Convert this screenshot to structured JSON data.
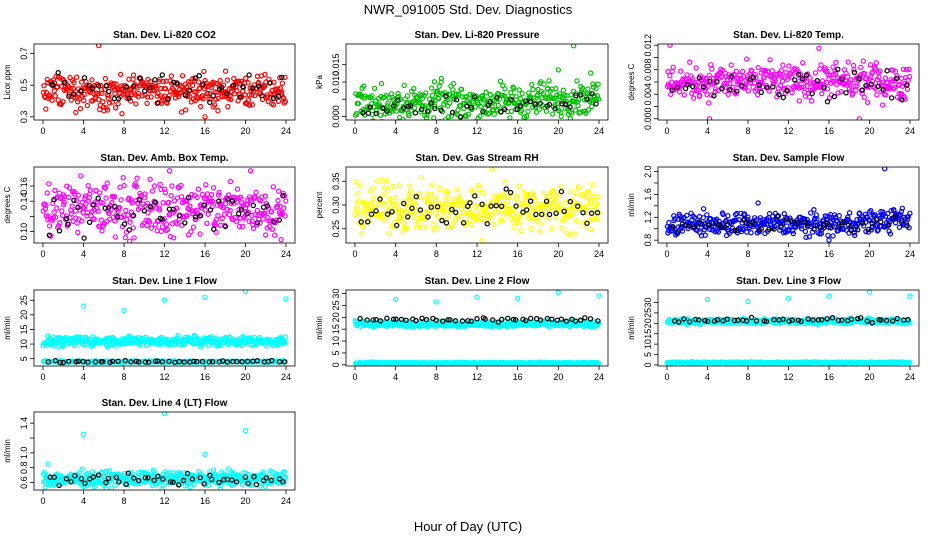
{
  "figure": {
    "title": "NWR_091005  Std. Dev. Diagnostics",
    "xlabel": "Hour of Day (UTC)"
  },
  "chart_data": [
    {
      "type": "scatter",
      "title": "Stan. Dev. Li-820 CO2",
      "ylabel": "Licor ppm",
      "xlim": [
        0,
        24
      ],
      "ylim": [
        0.28,
        0.76
      ],
      "x_ticks": [
        0,
        4,
        8,
        12,
        16,
        20,
        24
      ],
      "y_ticks": [
        0.3,
        0.5,
        0.7
      ],
      "series": [
        {
          "color": "#ff0000",
          "n": 380,
          "x_range": [
            0,
            24
          ],
          "mean": 0.46,
          "spread": 0.05,
          "extra": [
            [
              5.5,
              0.75
            ],
            [
              16,
              0.3
            ],
            [
              7.8,
              0.32
            ]
          ]
        },
        {
          "color": "#000000",
          "n": 48,
          "x_range": [
            0.5,
            24
          ],
          "mean": 0.48,
          "spread": 0.045,
          "extra": []
        }
      ]
    },
    {
      "type": "scatter",
      "title": "Stan. Dev. Li-820 Pressure",
      "ylabel": "kPa",
      "xlim": [
        0,
        24
      ],
      "ylim": [
        -0.001,
        0.021
      ],
      "x_ticks": [
        0,
        4,
        8,
        12,
        16,
        20,
        24
      ],
      "y_ticks": [
        0.0,
        0.005,
        0.01,
        0.015
      ],
      "y_tick_labels": [
        "0.000",
        "",
        "0.010",
        "0.015"
      ],
      "series": [
        {
          "color": "#00c000",
          "n": 380,
          "x_range": [
            0,
            24
          ],
          "mean": 0.004,
          "spread": 0.0025,
          "trend": 0.0002,
          "extra": [
            [
              21.5,
              0.0205
            ],
            [
              8.5,
              0.011
            ],
            [
              20,
              0.0135
            ]
          ]
        },
        {
          "color": "#000000",
          "n": 48,
          "x_range": [
            0.5,
            24
          ],
          "mean": 0.0035,
          "spread": 0.0015,
          "trend": 0.0001,
          "extra": []
        }
      ]
    },
    {
      "type": "scatter",
      "title": "Stan. Dev. Li-820 Temp.",
      "ylabel": "degrees C",
      "xlim": [
        0,
        24
      ],
      "ylim": [
        -0.0002,
        0.0122
      ],
      "x_ticks": [
        0,
        4,
        8,
        12,
        16,
        20,
        24
      ],
      "y_ticks": [
        0.0,
        0.002,
        0.004,
        0.006,
        0.008,
        0.01,
        0.012
      ],
      "y_tick_labels": [
        "0.000",
        "",
        "0.004",
        "",
        "0.008",
        "",
        "0.012"
      ],
      "series": [
        {
          "color": "#ff00ff",
          "n": 380,
          "x_range": [
            0,
            24
          ],
          "mean": 0.006,
          "spread": 0.0014,
          "extra": [
            [
              0.3,
              0.012
            ],
            [
              4.2,
              0.0
            ],
            [
              19,
              0.0
            ],
            [
              15,
              0.0115
            ]
          ]
        },
        {
          "color": "#000000",
          "n": 48,
          "x_range": [
            0.5,
            24
          ],
          "mean": 0.0055,
          "spread": 0.0012,
          "extra": []
        }
      ]
    },
    {
      "type": "scatter",
      "title": "Stan. Dev. Amb. Box Temp.",
      "ylabel": "degrees C",
      "xlim": [
        0,
        24
      ],
      "ylim": [
        0.085,
        0.185
      ],
      "x_ticks": [
        0,
        4,
        8,
        12,
        16,
        20,
        24
      ],
      "y_ticks": [
        0.1,
        0.12,
        0.14,
        0.16
      ],
      "y_tick_labels": [
        "0.10",
        "",
        "0.14",
        "0.16"
      ],
      "series": [
        {
          "color": "#ff00ff",
          "n": 380,
          "x_range": [
            0,
            24
          ],
          "mean": 0.13,
          "spread": 0.018,
          "extra": [
            [
              12.5,
              0.18
            ],
            [
              20.5,
              0.18
            ]
          ]
        },
        {
          "color": "#000000",
          "n": 48,
          "x_range": [
            0.5,
            24
          ],
          "mean": 0.125,
          "spread": 0.012,
          "extra": []
        }
      ]
    },
    {
      "type": "scatter",
      "title": "Stan. Dev. Gas Stream RH",
      "ylabel": "percent",
      "xlim": [
        0,
        24
      ],
      "ylim": [
        0.22,
        0.38
      ],
      "x_ticks": [
        0,
        4,
        8,
        12,
        16,
        20,
        24
      ],
      "y_ticks": [
        0.25,
        0.3,
        0.35
      ],
      "y_tick_labels": [
        "0.25",
        "0.30",
        "0.35"
      ],
      "series": [
        {
          "color": "#ffff00",
          "n": 380,
          "x_range": [
            0,
            24
          ],
          "mean": 0.295,
          "spread": 0.024,
          "extra": [
            [
              13.5,
              0.375
            ],
            [
              12.5,
              0.225
            ]
          ]
        },
        {
          "color": "#000000",
          "n": 48,
          "x_range": [
            0.5,
            24
          ],
          "mean": 0.29,
          "spread": 0.02,
          "extra": []
        }
      ]
    },
    {
      "type": "scatter",
      "title": "Stan. Dev. Sample Flow",
      "ylabel": "ml/min",
      "xlim": [
        0,
        24
      ],
      "ylim": [
        0.75,
        2.08
      ],
      "x_ticks": [
        0,
        4,
        8,
        12,
        16,
        20,
        24
      ],
      "y_ticks": [
        0.8,
        1.0,
        1.2,
        1.4,
        1.6,
        1.8,
        2.0
      ],
      "y_tick_labels": [
        "0.8",
        "",
        "1.2",
        "",
        "1.6",
        "",
        "2.0"
      ],
      "series": [
        {
          "color": "#0000ff",
          "n": 380,
          "x_range": [
            0,
            24
          ],
          "mean": 1.08,
          "spread": 0.1,
          "trend": 0.008,
          "extra": [
            [
              21.5,
              2.05
            ],
            [
              9,
              1.45
            ],
            [
              16,
              0.8
            ]
          ]
        },
        {
          "color": "#000000",
          "n": 48,
          "x_range": [
            0.5,
            24
          ],
          "mean": 1.07,
          "spread": 0.07,
          "trend": 0.006,
          "extra": []
        }
      ]
    },
    {
      "type": "scatter",
      "title": "Stan. Dev. Line 1 Flow",
      "ylabel": "ml/min",
      "xlim": [
        0,
        24
      ],
      "ylim": [
        2.5,
        28.5
      ],
      "x_ticks": [
        0,
        4,
        8,
        12,
        16,
        20,
        24
      ],
      "y_ticks": [
        5,
        10,
        15,
        20,
        25
      ],
      "series": [
        {
          "color": "#00ffff",
          "n": 420,
          "x_range": [
            0,
            24
          ],
          "mean": 11.0,
          "spread": 0.8,
          "extra": []
        },
        {
          "color": "#00ffff",
          "n": 240,
          "x_range": [
            0,
            24
          ],
          "mean": 4.0,
          "spread": 0.15,
          "extra": []
        },
        {
          "color": "#00ffff",
          "n": 0,
          "x_range": [
            0,
            24
          ],
          "mean": 0,
          "spread": 0,
          "extra": [
            [
              4,
              23
            ],
            [
              8,
              21.5
            ],
            [
              12,
              25
            ],
            [
              16,
              26
            ],
            [
              20,
              28
            ],
            [
              24,
              25.5
            ]
          ]
        },
        {
          "color": "#000000",
          "n": 48,
          "x_range": [
            0.5,
            24
          ],
          "mean": 4.0,
          "spread": 0.15,
          "extra": []
        }
      ]
    },
    {
      "type": "scatter",
      "title": "Stan. Dev. Line 2 Flow",
      "ylabel": "ml/min",
      "xlim": [
        0,
        24
      ],
      "ylim": [
        -0.5,
        31.5
      ],
      "x_ticks": [
        0,
        4,
        8,
        12,
        16,
        20,
        24
      ],
      "y_ticks": [
        0,
        5,
        10,
        15,
        20,
        25,
        30
      ],
      "series": [
        {
          "color": "#00ffff",
          "n": 420,
          "x_range": [
            0,
            24
          ],
          "mean": 17.2,
          "spread": 0.6,
          "extra": []
        },
        {
          "color": "#00ffff",
          "n": 240,
          "x_range": [
            0,
            24
          ],
          "mean": 0.8,
          "spread": 0.15,
          "extra": []
        },
        {
          "color": "#00ffff",
          "n": 0,
          "x_range": [
            0,
            24
          ],
          "mean": 0,
          "spread": 0,
          "extra": [
            [
              4,
              27.5
            ],
            [
              8,
              26.5
            ],
            [
              12,
              28.5
            ],
            [
              16,
              28
            ],
            [
              20,
              30.5
            ],
            [
              24,
              29
            ]
          ]
        },
        {
          "color": "#000000",
          "n": 48,
          "x_range": [
            0.5,
            24
          ],
          "mean": 19.0,
          "spread": 0.5,
          "extra": []
        }
      ]
    },
    {
      "type": "scatter",
      "title": "Stan. Dev. Line 3 Flow",
      "ylabel": "ml/min",
      "xlim": [
        0,
        24
      ],
      "ylim": [
        -0.5,
        36
      ],
      "x_ticks": [
        0,
        4,
        8,
        12,
        16,
        20,
        24
      ],
      "y_ticks": [
        0,
        5,
        10,
        15,
        20,
        25,
        30
      ],
      "series": [
        {
          "color": "#00ffff",
          "n": 420,
          "x_range": [
            0,
            24
          ],
          "mean": 21.0,
          "spread": 0.6,
          "extra": []
        },
        {
          "color": "#00ffff",
          "n": 240,
          "x_range": [
            0,
            24
          ],
          "mean": 1.2,
          "spread": 0.15,
          "extra": []
        },
        {
          "color": "#00ffff",
          "n": 0,
          "x_range": [
            0,
            24
          ],
          "mean": 0,
          "spread": 0,
          "extra": [
            [
              4,
              31.5
            ],
            [
              8,
              30.5
            ],
            [
              12,
              32
            ],
            [
              16,
              33
            ],
            [
              20,
              35
            ],
            [
              24,
              33
            ]
          ]
        },
        {
          "color": "#000000",
          "n": 48,
          "x_range": [
            0.5,
            24
          ],
          "mean": 21.5,
          "spread": 0.5,
          "extra": []
        }
      ]
    },
    {
      "type": "scatter",
      "title": "Stan. Dev. Line 4 (LT) Flow",
      "ylabel": "ml/min",
      "xlim": [
        0,
        24
      ],
      "ylim": [
        0.5,
        1.55
      ],
      "x_ticks": [
        0,
        4,
        8,
        12,
        16,
        20,
        24
      ],
      "y_ticks": [
        0.6,
        0.8,
        1.0,
        1.2,
        1.4
      ],
      "y_tick_labels": [
        "0.6",
        "0.8",
        "1.0",
        "",
        "1.4"
      ],
      "series": [
        {
          "color": "#00ffff",
          "n": 420,
          "x_range": [
            0,
            24
          ],
          "mean": 0.65,
          "spread": 0.05,
          "extra": [
            [
              12,
              1.53
            ],
            [
              4,
              1.25
            ],
            [
              20,
              1.3
            ],
            [
              16,
              0.98
            ],
            [
              0.5,
              0.85
            ]
          ]
        },
        {
          "color": "#000000",
          "n": 48,
          "x_range": [
            0.5,
            24
          ],
          "mean": 0.64,
          "spread": 0.04,
          "extra": []
        }
      ]
    }
  ]
}
